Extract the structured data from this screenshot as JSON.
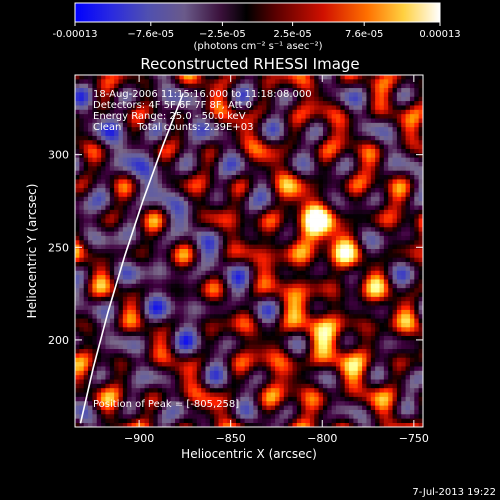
{
  "chart_data": {
    "type": "heatmap",
    "title": "Reconstructed RHESSI Image",
    "xlabel": "Heliocentric X (arcsec)",
    "ylabel": "Heliocentric Y (arcsec)",
    "xlim": [
      -935,
      -745
    ],
    "ylim": [
      153,
      343
    ],
    "x_ticks": [
      -900,
      -850,
      -800,
      -750
    ],
    "y_ticks": [
      200,
      250,
      300
    ],
    "colorbar": {
      "min": -0.00013,
      "max": 0.00013,
      "tick_values": [
        -0.00013,
        -7.6e-05,
        -2.5e-05,
        2.5e-05,
        7.6e-05,
        0.00013
      ],
      "tick_labels": [
        "-0.00013",
        "−7.6e-05",
        "−2.5e-05",
        "2.5e-05",
        "7.6e-05",
        "0.00013"
      ],
      "units_label": "(photons cm⁻² s⁻¹ asec⁻²)"
    },
    "annotations": [
      "18-Aug-2006 11:15:16.000 to 11:18:08.000",
      "Detectors: 4F 5F 6F 7F 8F, Att 0",
      "Energy Range: 25.0 - 50.0 keV",
      "Clean     Total counts: 2.39E+03"
    ],
    "peak_label": "Position of Peak = [-805,258]",
    "peak_position": [
      -805,
      258
    ],
    "limb_curve_points": [
      [
        -932,
        155
      ],
      [
        -925,
        185
      ],
      [
        -917,
        215
      ],
      [
        -908,
        245
      ],
      [
        -898,
        275
      ],
      [
        -887,
        305
      ],
      [
        -876,
        333
      ]
    ],
    "grid": false,
    "colormap": [
      "#0000ff",
      "#3333cc",
      "#5a5aaa",
      "#7a6a8a",
      "#400040",
      "#000000",
      "#7a0000",
      "#ff2000",
      "#ffa000",
      "#ffff80",
      "#ffffff"
    ]
  },
  "footer": {
    "timestamp": "7-Jul-2013 19:22"
  }
}
